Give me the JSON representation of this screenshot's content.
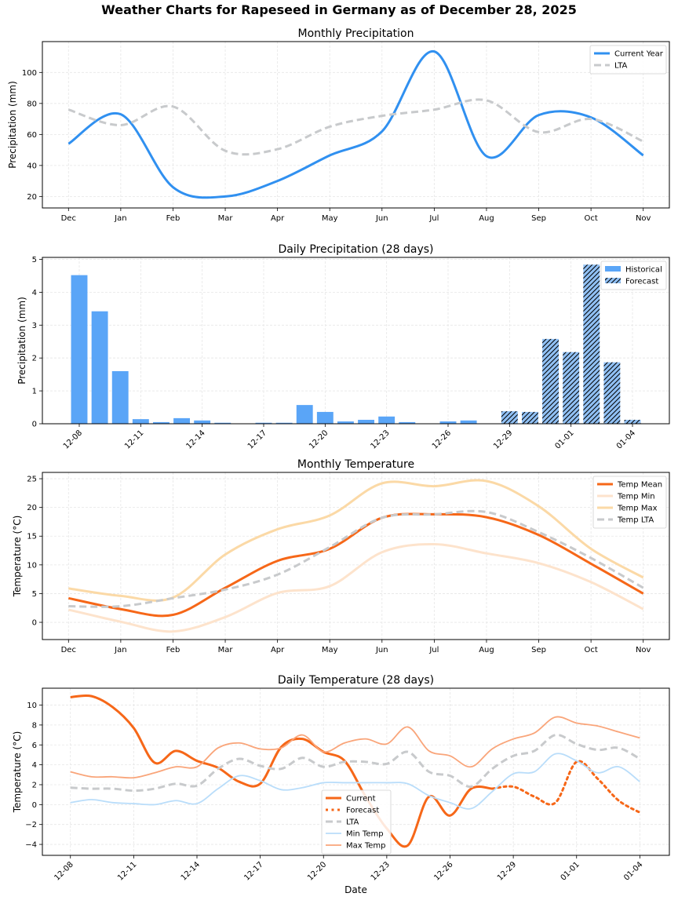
{
  "figure_title": "Weather Charts for Rapeseed in Germany as of December 28, 2025",
  "colors": {
    "precip_current": "#3090f0",
    "lta": "#c8cacc",
    "bar_historical": "#5aa5f7",
    "bar_forecast": "#90c0f4",
    "temp_mean": "#f66718",
    "temp_min": "#fde3cc",
    "temp_max": "#fbd9a6",
    "daily_min": "#b9ddfa",
    "daily_max": "#f9a57a"
  },
  "chart_data": [
    {
      "id": "monthly_precip",
      "type": "line",
      "title": "Monthly Precipitation",
      "xlabel": "",
      "ylabel": "Precipitation (mm)",
      "categories": [
        "Dec",
        "Jan",
        "Feb",
        "Mar",
        "Apr",
        "May",
        "Jun",
        "Jul",
        "Aug",
        "Sep",
        "Oct",
        "Nov"
      ],
      "ylim": [
        12.6,
        119.9
      ],
      "yticks": [
        20,
        40,
        60,
        80,
        100
      ],
      "grid": true,
      "legend": "top-right",
      "series": [
        {
          "name": "Current Year",
          "style": "solid",
          "values": [
            54,
            73,
            26,
            20,
            30,
            46.5,
            62,
            113.5,
            46,
            72.5,
            71,
            46.5
          ]
        },
        {
          "name": "LTA",
          "style": "dashed",
          "values": [
            76,
            66,
            78,
            49.5,
            50.5,
            65,
            72,
            76,
            82,
            61.5,
            70,
            55.5
          ]
        }
      ]
    },
    {
      "id": "daily_precip",
      "type": "bar",
      "title": "Daily Precipitation (28 days)",
      "xlabel": "",
      "ylabel": "Precipitation (mm)",
      "categories": [
        "12-08",
        "12-09",
        "12-10",
        "12-11",
        "12-12",
        "12-13",
        "12-14",
        "12-15",
        "12-16",
        "12-17",
        "12-18",
        "12-19",
        "12-20",
        "12-21",
        "12-22",
        "12-23",
        "12-24",
        "12-25",
        "12-26",
        "12-27",
        "12-28",
        "12-29",
        "12-30",
        "12-31",
        "01-01",
        "01-02",
        "01-03",
        "01-04"
      ],
      "xticks": [
        "12-08",
        "12-11",
        "12-14",
        "12-17",
        "12-20",
        "12-23",
        "12-26",
        "12-29",
        "01-01",
        "01-04"
      ],
      "ylim": [
        0,
        5.06
      ],
      "yticks": [
        0,
        1,
        2,
        3,
        4,
        5
      ],
      "grid": true,
      "legend": "top-right",
      "series": [
        {
          "name": "Historical",
          "values": [
            4.52,
            3.42,
            1.6,
            0.14,
            0.05,
            0.17,
            0.1,
            0.03,
            0,
            0.03,
            0.03,
            0.57,
            0.36,
            0.07,
            0.12,
            0.22,
            0.05,
            0,
            0.07,
            0.1,
            0,
            null,
            null,
            null,
            null,
            null,
            null,
            null
          ]
        },
        {
          "name": "Forecast",
          "values": [
            null,
            null,
            null,
            null,
            null,
            null,
            null,
            null,
            null,
            null,
            null,
            null,
            null,
            null,
            null,
            null,
            null,
            null,
            null,
            null,
            null,
            0.38,
            0.36,
            2.58,
            2.18,
            4.84,
            1.87,
            0.12
          ]
        }
      ]
    },
    {
      "id": "monthly_temp",
      "type": "line",
      "title": "Monthly Temperature",
      "xlabel": "",
      "ylabel": "Temperature (°C)",
      "categories": [
        "Dec",
        "Jan",
        "Feb",
        "Mar",
        "Apr",
        "May",
        "Jun",
        "Jul",
        "Aug",
        "Sep",
        "Oct",
        "Nov"
      ],
      "ylim": [
        -3.0,
        26.1
      ],
      "yticks": [
        0,
        5,
        10,
        15,
        20,
        25
      ],
      "grid": true,
      "legend": "top-right",
      "series": [
        {
          "name": "Temp Mean",
          "style": "solid",
          "values": [
            4.2,
            2.3,
            1.3,
            6.0,
            10.7,
            12.8,
            18.2,
            18.8,
            18.3,
            15.2,
            10.2,
            5.0
          ]
        },
        {
          "name": "Temp Min",
          "style": "solid",
          "values": [
            2.2,
            0.1,
            -1.6,
            0.9,
            5.1,
            6.3,
            12.2,
            13.6,
            12.0,
            10.3,
            7.0,
            2.3
          ]
        },
        {
          "name": "Temp Max",
          "style": "solid",
          "values": [
            5.9,
            4.6,
            4.3,
            11.8,
            16.2,
            18.6,
            24.2,
            23.7,
            24.6,
            20.2,
            12.8,
            7.8
          ]
        },
        {
          "name": "Temp LTA",
          "style": "dashed",
          "values": [
            2.8,
            2.8,
            4.2,
            5.7,
            8.3,
            13.1,
            18.2,
            18.8,
            19.2,
            15.7,
            11.2,
            6.0
          ]
        }
      ]
    },
    {
      "id": "daily_temp",
      "type": "line",
      "title": "Daily Temperature (28 days)",
      "xlabel": "Date",
      "ylabel": "Temperature (°C)",
      "categories": [
        "12-08",
        "12-09",
        "12-10",
        "12-11",
        "12-12",
        "12-13",
        "12-14",
        "12-15",
        "12-16",
        "12-17",
        "12-18",
        "12-19",
        "12-20",
        "12-21",
        "12-22",
        "12-23",
        "12-24",
        "12-25",
        "12-26",
        "12-27",
        "12-28",
        "12-29",
        "12-30",
        "12-31",
        "01-01",
        "01-02",
        "01-03",
        "01-04"
      ],
      "xticks": [
        "12-08",
        "12-11",
        "12-14",
        "12-17",
        "12-20",
        "12-23",
        "12-26",
        "12-29",
        "01-01",
        "01-04"
      ],
      "ylim": [
        -5.1,
        11.7
      ],
      "yticks": [
        -4,
        -2,
        0,
        2,
        4,
        6,
        8,
        10
      ],
      "grid": true,
      "legend": "lower-center",
      "series": [
        {
          "name": "Current",
          "style": "solid",
          "values": [
            10.8,
            10.9,
            9.8,
            7.7,
            4.2,
            5.4,
            4.4,
            3.7,
            2.3,
            2.1,
            5.8,
            6.6,
            5.3,
            4.4,
            0.8,
            -2.4,
            -4.1,
            0.8,
            -1.1,
            1.6,
            1.6,
            null,
            null,
            null,
            null,
            null,
            null,
            null
          ]
        },
        {
          "name": "Forecast",
          "style": "dotted",
          "values": [
            null,
            null,
            null,
            null,
            null,
            null,
            null,
            null,
            null,
            null,
            null,
            null,
            null,
            null,
            null,
            null,
            null,
            null,
            null,
            null,
            1.6,
            1.8,
            0.8,
            0.2,
            4.3,
            2.6,
            0.4,
            -0.8
          ]
        },
        {
          "name": "LTA",
          "style": "dashed",
          "values": [
            1.7,
            1.6,
            1.6,
            1.4,
            1.6,
            2.1,
            1.9,
            3.6,
            4.6,
            3.9,
            3.6,
            4.7,
            3.8,
            4.3,
            4.3,
            4.1,
            5.3,
            3.3,
            2.9,
            1.8,
            3.6,
            4.9,
            5.4,
            7.0,
            6.1,
            5.5,
            5.7,
            4.6
          ]
        },
        {
          "name": "Min Temp",
          "style": "solid",
          "values": [
            0.2,
            0.5,
            0.2,
            0.1,
            0.0,
            0.4,
            0.1,
            1.6,
            2.9,
            2.4,
            1.5,
            1.7,
            2.2,
            2.2,
            2.2,
            2.2,
            2.1,
            0.9,
            0.2,
            -0.4,
            1.3,
            3.1,
            3.3,
            5.1,
            4.4,
            3.2,
            3.8,
            2.3
          ]
        },
        {
          "name": "Max Temp",
          "style": "solid",
          "values": [
            3.3,
            2.8,
            2.8,
            2.7,
            3.2,
            3.8,
            3.8,
            5.7,
            6.2,
            5.6,
            5.7,
            7.0,
            5.3,
            6.2,
            6.6,
            6.1,
            7.8,
            5.4,
            4.9,
            3.8,
            5.6,
            6.6,
            7.2,
            8.8,
            8.2,
            7.9,
            7.3,
            6.7
          ]
        }
      ]
    }
  ]
}
